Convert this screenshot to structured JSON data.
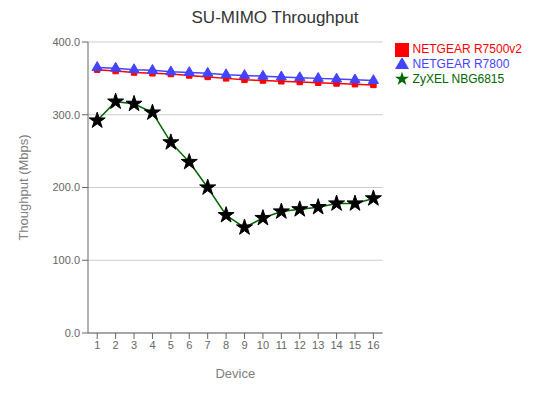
{
  "chart_data": {
    "type": "line",
    "title": "SU-MIMO Throughput",
    "x_label": "Device",
    "y_label": "Thoughput (Mbps)",
    "x": [
      1,
      2,
      3,
      4,
      5,
      6,
      7,
      8,
      9,
      10,
      11,
      12,
      13,
      14,
      15,
      16
    ],
    "series": [
      {
        "name": "NETGEAR R7500v2",
        "color": "#ff0000",
        "marker": "square",
        "values": [
          362,
          360,
          358,
          357,
          356,
          354,
          352,
          350,
          348,
          347,
          346,
          345,
          344,
          343,
          342,
          341
        ]
      },
      {
        "name": "NETGEAR R7800",
        "color": "#4444ff",
        "marker": "triangle",
        "values": [
          365,
          364,
          362,
          361,
          359,
          358,
          357,
          355,
          354,
          353,
          352,
          351,
          350,
          349,
          348,
          347
        ]
      },
      {
        "name": "ZyXEL NBG6815",
        "color": "#006600",
        "marker": "star",
        "values": [
          292,
          318,
          315,
          303,
          262,
          235,
          200,
          162,
          145,
          158,
          167,
          170,
          173,
          178,
          178,
          185
        ]
      }
    ],
    "xlim": [
      0.5,
      16.5
    ],
    "xticks": [
      1,
      2,
      3,
      4,
      5,
      6,
      7,
      8,
      9,
      10,
      11,
      12,
      13,
      14,
      15,
      16
    ],
    "ylim": [
      0,
      400
    ],
    "yticks": [
      {
        "value": 0,
        "label": "0.0"
      },
      {
        "value": 100,
        "label": "100.0"
      },
      {
        "value": 200,
        "label": "200.0"
      },
      {
        "value": 300,
        "label": "300.0"
      },
      {
        "value": 400,
        "label": "400.0"
      }
    ],
    "grid": "y",
    "legend": "right"
  }
}
